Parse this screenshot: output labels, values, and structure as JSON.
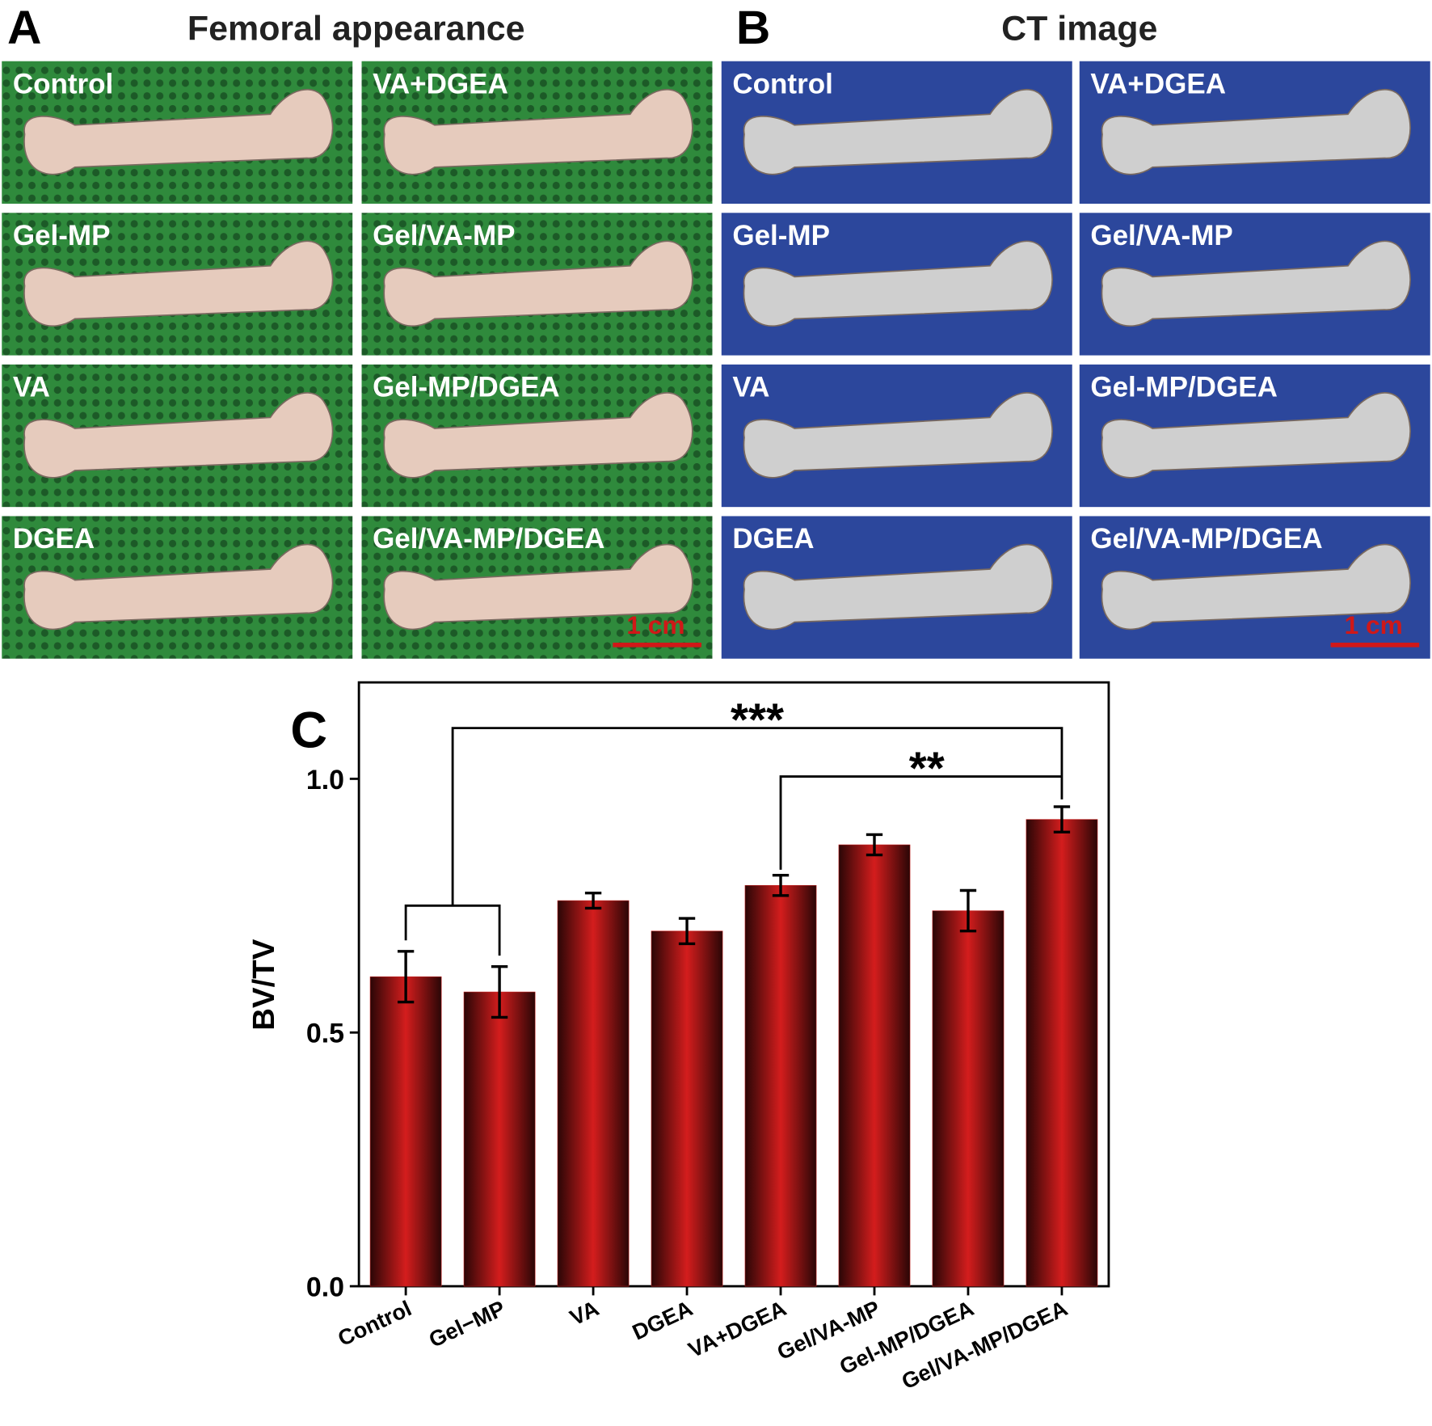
{
  "panel_a": {
    "letter": "A",
    "title": "Femoral appearance",
    "labels": [
      "Control",
      "Gel-MP",
      "VA",
      "DGEA",
      "VA+DGEA",
      "Gel/VA-MP",
      "Gel-MP/DGEA",
      "Gel/VA-MP/DGEA"
    ],
    "scale_bar": "1 cm"
  },
  "panel_b": {
    "letter": "B",
    "title": "CT image",
    "labels": [
      "Control",
      "Gel-MP",
      "VA",
      "DGEA",
      "VA+DGEA",
      "Gel/VA-MP",
      "Gel-MP/DGEA",
      "Gel/VA-MP/DGEA"
    ],
    "scale_bar": "1 cm"
  },
  "chart_data": {
    "type": "bar",
    "letter": "C",
    "y_label": "BV/TV",
    "categories": [
      "Control",
      "Gel−MP",
      "VA",
      "DGEA",
      "VA+DGEA",
      "Gel/VA-MP",
      "Gel-MP/DGEA",
      "Gel/VA-MP/DGEA"
    ],
    "values": [
      0.61,
      0.58,
      0.76,
      0.7,
      0.79,
      0.87,
      0.74,
      0.92
    ],
    "errors": [
      0.05,
      0.05,
      0.015,
      0.025,
      0.02,
      0.02,
      0.04,
      0.025
    ],
    "color": "#c8201e",
    "ylim": [
      0,
      1.19
    ],
    "yticks": [
      {
        "value": 0,
        "label": "0.0"
      },
      {
        "value": 0.5,
        "label": "0.5"
      },
      {
        "value": 1,
        "label": "1.0"
      }
    ],
    "annotations": [
      {
        "text": "***"
      },
      {
        "text": "**"
      }
    ]
  }
}
